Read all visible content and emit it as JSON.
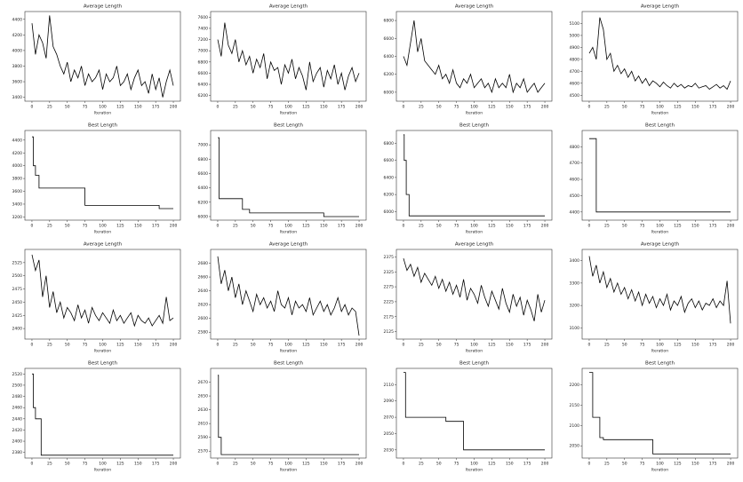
{
  "chart_data": [
    {
      "type": "line",
      "title": "Average Length",
      "xlabel": "Iteration",
      "color": "#000000",
      "xlim": [
        -10,
        210
      ],
      "xticks": [
        0,
        25,
        50,
        75,
        100,
        125,
        150,
        175,
        200
      ],
      "ylim": [
        3350,
        4500
      ],
      "yticks": [
        3400,
        3600,
        3800,
        4000,
        4200,
        4400
      ],
      "x": [
        0,
        5,
        10,
        15,
        20,
        25,
        30,
        35,
        40,
        45,
        50,
        55,
        60,
        65,
        70,
        75,
        80,
        85,
        90,
        95,
        100,
        105,
        110,
        115,
        120,
        125,
        130,
        135,
        140,
        145,
        150,
        155,
        160,
        165,
        170,
        175,
        180,
        185,
        190,
        195,
        200
      ],
      "values": [
        4350,
        3950,
        4200,
        4100,
        3900,
        4450,
        4050,
        3950,
        3800,
        3700,
        3850,
        3600,
        3750,
        3650,
        3800,
        3550,
        3700,
        3600,
        3650,
        3750,
        3500,
        3700,
        3600,
        3650,
        3800,
        3550,
        3600,
        3700,
        3500,
        3650,
        3750,
        3550,
        3600,
        3450,
        3700,
        3500,
        3650,
        3400,
        3600,
        3750,
        3550
      ]
    },
    {
      "type": "line",
      "title": "Average Length",
      "xlabel": "Iteration",
      "color": "#000000",
      "xlim": [
        -10,
        210
      ],
      "xticks": [
        0,
        25,
        50,
        75,
        100,
        125,
        150,
        175,
        200
      ],
      "ylim": [
        6100,
        7700
      ],
      "yticks": [
        6200,
        6400,
        6600,
        6800,
        7000,
        7200,
        7400,
        7600
      ],
      "x": [
        0,
        5,
        10,
        15,
        20,
        25,
        30,
        35,
        40,
        45,
        50,
        55,
        60,
        65,
        70,
        75,
        80,
        85,
        90,
        95,
        100,
        105,
        110,
        115,
        120,
        125,
        130,
        135,
        140,
        145,
        150,
        155,
        160,
        165,
        170,
        175,
        180,
        185,
        190,
        195,
        200
      ],
      "values": [
        7200,
        6900,
        7500,
        7100,
        6950,
        7200,
        6800,
        7000,
        6750,
        6900,
        6600,
        6850,
        6700,
        6950,
        6500,
        6800,
        6650,
        6700,
        6400,
        6750,
        6600,
        6850,
        6500,
        6700,
        6550,
        6300,
        6800,
        6450,
        6600,
        6700,
        6350,
        6650,
        6500,
        6750,
        6400,
        6600,
        6300,
        6550,
        6700,
        6450,
        6600
      ]
    },
    {
      "type": "line",
      "title": "Average Length",
      "xlabel": "Iteration",
      "color": "#000000",
      "xlim": [
        -10,
        210
      ],
      "xticks": [
        0,
        25,
        50,
        75,
        100,
        125,
        150,
        175,
        200
      ],
      "ylim": [
        5900,
        6900
      ],
      "yticks": [
        6000,
        6200,
        6400,
        6600,
        6800
      ],
      "x": [
        0,
        5,
        10,
        15,
        20,
        25,
        30,
        35,
        40,
        45,
        50,
        55,
        60,
        65,
        70,
        75,
        80,
        85,
        90,
        95,
        100,
        105,
        110,
        115,
        120,
        125,
        130,
        135,
        140,
        145,
        150,
        155,
        160,
        165,
        170,
        175,
        180,
        185,
        190,
        195,
        200
      ],
      "values": [
        6400,
        6300,
        6550,
        6800,
        6450,
        6600,
        6350,
        6300,
        6250,
        6200,
        6300,
        6150,
        6200,
        6100,
        6250,
        6100,
        6050,
        6150,
        6100,
        6200,
        6050,
        6100,
        6150,
        6050,
        6100,
        6000,
        6150,
        6050,
        6100,
        6050,
        6200,
        6000,
        6100,
        6050,
        6150,
        6000,
        6050,
        6100,
        6000,
        6050,
        6100
      ]
    },
    {
      "type": "line",
      "title": "Average Length",
      "xlabel": "Iteration",
      "color": "#000000",
      "xlim": [
        -10,
        210
      ],
      "xticks": [
        0,
        25,
        50,
        75,
        100,
        125,
        150,
        175,
        200
      ],
      "ylim": [
        4450,
        5200
      ],
      "yticks": [
        4500,
        4600,
        4700,
        4800,
        4900,
        5000,
        5100
      ],
      "x": [
        0,
        5,
        10,
        15,
        20,
        25,
        30,
        35,
        40,
        45,
        50,
        55,
        60,
        65,
        70,
        75,
        80,
        85,
        90,
        95,
        100,
        105,
        110,
        115,
        120,
        125,
        130,
        135,
        140,
        145,
        150,
        155,
        160,
        165,
        170,
        175,
        180,
        185,
        190,
        195,
        200
      ],
      "values": [
        4850,
        4900,
        4800,
        5150,
        5050,
        4800,
        4850,
        4700,
        4750,
        4680,
        4720,
        4650,
        4700,
        4620,
        4660,
        4600,
        4640,
        4580,
        4620,
        4600,
        4570,
        4610,
        4580,
        4560,
        4600,
        4570,
        4590,
        4560,
        4580,
        4570,
        4600,
        4560,
        4570,
        4580,
        4550,
        4570,
        4590,
        4560,
        4580,
        4550,
        4620
      ]
    },
    {
      "type": "line",
      "title": "Best Length",
      "xlabel": "Iteration",
      "color": "#000000",
      "xlim": [
        -10,
        210
      ],
      "xticks": [
        0,
        25,
        50,
        75,
        100,
        125,
        150,
        175,
        200
      ],
      "ylim": [
        3150,
        4550
      ],
      "yticks": [
        3200,
        3400,
        3600,
        3800,
        4000,
        4200,
        4400
      ],
      "x": [
        0,
        2,
        2,
        5,
        5,
        10,
        10,
        75,
        75,
        180,
        180,
        200
      ],
      "values": [
        4450,
        4450,
        4000,
        4000,
        3850,
        3850,
        3650,
        3650,
        3380,
        3380,
        3330,
        3330
      ]
    },
    {
      "type": "line",
      "title": "Best Length",
      "xlabel": "Iteration",
      "color": "#000000",
      "xlim": [
        -10,
        210
      ],
      "xticks": [
        0,
        25,
        50,
        75,
        100,
        125,
        150,
        175,
        200
      ],
      "ylim": [
        5950,
        7200
      ],
      "yticks": [
        6000,
        6200,
        6400,
        6600,
        6800,
        7000
      ],
      "x": [
        0,
        2,
        2,
        35,
        35,
        45,
        45,
        150,
        150,
        200
      ],
      "values": [
        7100,
        7100,
        6250,
        6250,
        6100,
        6100,
        6050,
        6050,
        6000,
        6000
      ]
    },
    {
      "type": "line",
      "title": "Best Length",
      "xlabel": "Iteration",
      "color": "#000000",
      "xlim": [
        -10,
        210
      ],
      "xticks": [
        0,
        25,
        50,
        75,
        100,
        125,
        150,
        175,
        200
      ],
      "ylim": [
        5900,
        6950
      ],
      "yticks": [
        6000,
        6200,
        6400,
        6600,
        6800
      ],
      "x": [
        0,
        1,
        1,
        4,
        4,
        8,
        8,
        200
      ],
      "values": [
        6900,
        6900,
        6600,
        6600,
        6200,
        6200,
        5950,
        5950
      ]
    },
    {
      "type": "line",
      "title": "Best Length",
      "xlabel": "Iteration",
      "color": "#000000",
      "xlim": [
        -10,
        210
      ],
      "xticks": [
        0,
        25,
        50,
        75,
        100,
        125,
        150,
        175,
        200
      ],
      "ylim": [
        4350,
        4900
      ],
      "yticks": [
        4400,
        4500,
        4600,
        4700,
        4800
      ],
      "x": [
        0,
        10,
        10,
        200
      ],
      "values": [
        4850,
        4850,
        4400,
        4400
      ]
    },
    {
      "type": "line",
      "title": "Average Length",
      "xlabel": "Iteration",
      "color": "#000000",
      "xlim": [
        -10,
        210
      ],
      "xticks": [
        0,
        25,
        50,
        75,
        100,
        125,
        150,
        175,
        200
      ],
      "ylim": [
        2380,
        2550
      ],
      "yticks": [
        2400,
        2425,
        2450,
        2475,
        2500,
        2525
      ],
      "x": [
        0,
        5,
        10,
        15,
        20,
        25,
        30,
        35,
        40,
        45,
        50,
        55,
        60,
        65,
        70,
        75,
        80,
        85,
        90,
        95,
        100,
        105,
        110,
        115,
        120,
        125,
        130,
        135,
        140,
        145,
        150,
        155,
        160,
        165,
        170,
        175,
        180,
        185,
        190,
        195,
        200
      ],
      "values": [
        2540,
        2510,
        2530,
        2460,
        2500,
        2440,
        2470,
        2430,
        2450,
        2420,
        2440,
        2430,
        2415,
        2445,
        2420,
        2435,
        2410,
        2440,
        2425,
        2415,
        2430,
        2420,
        2410,
        2435,
        2415,
        2425,
        2410,
        2420,
        2430,
        2405,
        2425,
        2415,
        2410,
        2420,
        2405,
        2415,
        2425,
        2410,
        2460,
        2415,
        2420
      ]
    },
    {
      "type": "line",
      "title": "Average Length",
      "xlabel": "Iteration",
      "color": "#000000",
      "xlim": [
        -10,
        210
      ],
      "xticks": [
        0,
        25,
        50,
        75,
        100,
        125,
        150,
        175,
        200
      ],
      "ylim": [
        2570,
        2700
      ],
      "yticks": [
        2580,
        2600,
        2620,
        2640,
        2660,
        2680
      ],
      "x": [
        0,
        5,
        10,
        15,
        20,
        25,
        30,
        35,
        40,
        45,
        50,
        55,
        60,
        65,
        70,
        75,
        80,
        85,
        90,
        95,
        100,
        105,
        110,
        115,
        120,
        125,
        130,
        135,
        140,
        145,
        150,
        155,
        160,
        165,
        170,
        175,
        180,
        185,
        190,
        195,
        200
      ],
      "values": [
        2690,
        2650,
        2670,
        2640,
        2660,
        2630,
        2650,
        2620,
        2640,
        2625,
        2610,
        2635,
        2620,
        2630,
        2615,
        2625,
        2610,
        2640,
        2620,
        2615,
        2630,
        2605,
        2625,
        2615,
        2620,
        2610,
        2630,
        2605,
        2615,
        2625,
        2610,
        2620,
        2605,
        2615,
        2630,
        2610,
        2620,
        2605,
        2615,
        2610,
        2575
      ]
    },
    {
      "type": "line",
      "title": "Average Length",
      "xlabel": "Iteration",
      "color": "#000000",
      "xlim": [
        -10,
        210
      ],
      "xticks": [
        0,
        25,
        50,
        75,
        100,
        125,
        150,
        175,
        200
      ],
      "ylim": [
        2100,
        2400
      ],
      "yticks": [
        2125,
        2175,
        2225,
        2275,
        2325,
        2375
      ],
      "x": [
        0,
        5,
        10,
        15,
        20,
        25,
        30,
        35,
        40,
        45,
        50,
        55,
        60,
        65,
        70,
        75,
        80,
        85,
        90,
        95,
        100,
        105,
        110,
        115,
        120,
        125,
        130,
        135,
        140,
        145,
        150,
        155,
        160,
        165,
        170,
        175,
        180,
        185,
        190,
        195,
        200
      ],
      "values": [
        2370,
        2330,
        2350,
        2310,
        2340,
        2290,
        2320,
        2300,
        2280,
        2310,
        2270,
        2300,
        2260,
        2290,
        2250,
        2280,
        2240,
        2300,
        2230,
        2270,
        2250,
        2220,
        2280,
        2240,
        2210,
        2260,
        2230,
        2200,
        2270,
        2220,
        2190,
        2250,
        2210,
        2240,
        2180,
        2230,
        2200,
        2160,
        2250,
        2190,
        2230
      ]
    },
    {
      "type": "line",
      "title": "Average Length",
      "xlabel": "Iteration",
      "color": "#000000",
      "xlim": [
        -10,
        210
      ],
      "xticks": [
        0,
        25,
        50,
        75,
        100,
        125,
        150,
        175,
        200
      ],
      "ylim": [
        3050,
        3450
      ],
      "yticks": [
        3100,
        3200,
        3300,
        3400
      ],
      "x": [
        0,
        5,
        10,
        15,
        20,
        25,
        30,
        35,
        40,
        45,
        50,
        55,
        60,
        65,
        70,
        75,
        80,
        85,
        90,
        95,
        100,
        105,
        110,
        115,
        120,
        125,
        130,
        135,
        140,
        145,
        150,
        155,
        160,
        165,
        170,
        175,
        180,
        185,
        190,
        195,
        200
      ],
      "values": [
        3420,
        3330,
        3380,
        3300,
        3350,
        3280,
        3320,
        3260,
        3300,
        3250,
        3280,
        3230,
        3270,
        3220,
        3260,
        3200,
        3250,
        3210,
        3240,
        3190,
        3230,
        3200,
        3250,
        3180,
        3220,
        3200,
        3240,
        3170,
        3210,
        3230,
        3190,
        3220,
        3180,
        3210,
        3200,
        3230,
        3190,
        3220,
        3200,
        3310,
        3120
      ]
    },
    {
      "type": "line",
      "title": "Best Length",
      "xlabel": "Iteration",
      "color": "#000000",
      "xlim": [
        -10,
        210
      ],
      "xticks": [
        0,
        25,
        50,
        75,
        100,
        125,
        150,
        175,
        200
      ],
      "ylim": [
        2370,
        2530
      ],
      "yticks": [
        2380,
        2400,
        2420,
        2440,
        2460,
        2480,
        2500,
        2520
      ],
      "x": [
        0,
        2,
        2,
        5,
        5,
        13,
        13,
        200
      ],
      "values": [
        2520,
        2520,
        2460,
        2460,
        2440,
        2440,
        2375,
        2375
      ]
    },
    {
      "type": "line",
      "title": "Best Length",
      "xlabel": "Iteration",
      "color": "#000000",
      "xlim": [
        -10,
        210
      ],
      "xticks": [
        0,
        25,
        50,
        75,
        100,
        125,
        150,
        175,
        200
      ],
      "ylim": [
        2560,
        2690
      ],
      "yticks": [
        2570,
        2590,
        2610,
        2630,
        2650,
        2670
      ],
      "x": [
        0,
        1,
        1,
        5,
        5,
        200
      ],
      "values": [
        2680,
        2680,
        2590,
        2590,
        2565,
        2565
      ]
    },
    {
      "type": "line",
      "title": "Best Length",
      "xlabel": "Iteration",
      "color": "#000000",
      "xlim": [
        -10,
        210
      ],
      "xticks": [
        0,
        25,
        50,
        75,
        100,
        125,
        150,
        175,
        200
      ],
      "ylim": [
        2020,
        2130
      ],
      "yticks": [
        2030,
        2050,
        2070,
        2090,
        2110
      ],
      "x": [
        0,
        3,
        3,
        60,
        60,
        85,
        85,
        200
      ],
      "values": [
        2125,
        2125,
        2070,
        2070,
        2065,
        2065,
        2030,
        2030
      ]
    },
    {
      "type": "line",
      "title": "Best Length",
      "xlabel": "Iteration",
      "color": "#000000",
      "xlim": [
        -10,
        210
      ],
      "xticks": [
        0,
        25,
        50,
        75,
        100,
        125,
        150,
        175,
        200
      ],
      "ylim": [
        2020,
        2240
      ],
      "yticks": [
        2050,
        2100,
        2150,
        2200
      ],
      "x": [
        0,
        5,
        5,
        15,
        15,
        20,
        20,
        90,
        90,
        200
      ],
      "values": [
        2230,
        2230,
        2120,
        2120,
        2070,
        2070,
        2065,
        2065,
        2030,
        2030
      ]
    }
  ]
}
